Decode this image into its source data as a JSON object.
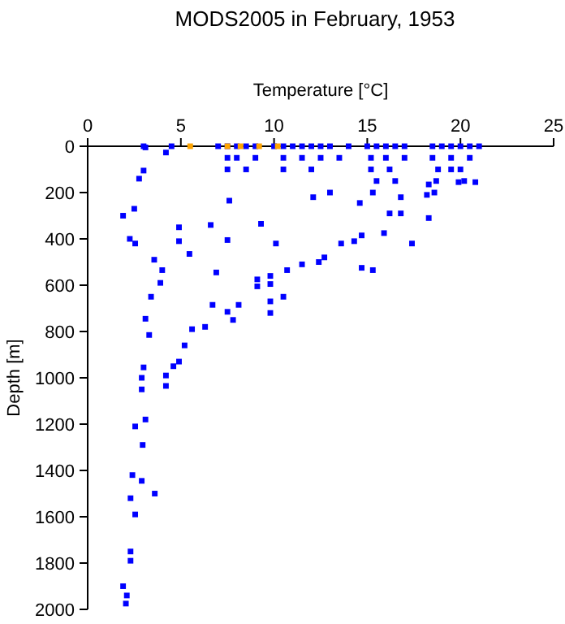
{
  "chart_data": {
    "type": "scatter",
    "title": "MODS2005 in February, 1953",
    "xlabel": "Temperature [°C]",
    "ylabel": "Depth [m]",
    "xlim": [
      0,
      25
    ],
    "xticks": [
      0,
      5,
      10,
      15,
      20,
      25
    ],
    "ylim": [
      2000,
      0
    ],
    "yticks": [
      0,
      200,
      400,
      600,
      800,
      1000,
      1200,
      1400,
      1600,
      1800,
      2000
    ],
    "grid": false,
    "marker": "square",
    "series": [
      {
        "color": "#0000ff",
        "x": [
          3,
          4.5,
          7,
          7.5,
          8,
          8.5,
          9,
          10,
          10.5,
          11,
          11.5,
          12,
          12.5,
          13,
          14,
          15,
          15.5,
          16,
          16.5,
          17,
          18.5,
          19,
          19.5,
          20,
          20.5,
          21,
          7.5,
          8,
          9,
          10.5,
          11.5,
          12.5,
          13.5,
          15.2,
          16,
          17,
          18.5,
          19.5,
          20.5,
          7.5,
          8.5,
          10.5,
          12,
          15.2,
          16.2,
          18.8,
          19.5,
          20,
          15.5,
          16.5,
          18.7,
          20.2,
          13,
          15.3,
          18.6,
          3.1,
          4.2,
          3,
          2.76,
          1.9,
          2.5,
          2.26,
          2.55,
          3.57,
          4,
          3.9,
          3.4,
          3.1,
          3.3,
          2.9,
          4.2,
          4.9,
          4.9,
          5.46,
          5.6,
          6.3,
          5.2,
          4.9,
          4.6,
          6.9,
          6.7,
          8.1,
          7.8,
          7.5,
          9.1,
          9.8,
          10.7,
          11.5,
          12.4,
          9.8,
          7.5,
          6.6,
          9.3,
          7.6,
          13.6,
          12.7,
          14.3,
          14.7,
          15.9,
          16.2,
          16.8,
          17.4,
          16.8,
          18.2,
          18.3,
          19.9,
          20.8,
          14.6,
          18.3,
          15.3,
          14.7,
          12.1,
          10.1,
          9.8,
          10.5,
          9.8,
          9.1,
          3,
          2.9,
          4.2,
          2.55,
          3.1,
          2.95,
          2.4,
          2.9,
          3.6,
          2.3,
          2.55,
          2.3,
          2.3,
          1.9,
          2.1,
          2.05
        ],
        "values": [
          0,
          0,
          0,
          0,
          0,
          0,
          0,
          0,
          0,
          0,
          0,
          0,
          0,
          0,
          0,
          0,
          0,
          0,
          0,
          0,
          0,
          0,
          0,
          0,
          0,
          0,
          50,
          50,
          50,
          50,
          50,
          50,
          50,
          50,
          50,
          50,
          50,
          50,
          50,
          100,
          100,
          100,
          100,
          100,
          100,
          100,
          100,
          100,
          150,
          150,
          150,
          150,
          200,
          200,
          200,
          5,
          27,
          105,
          140,
          300,
          270,
          400,
          420,
          490,
          535,
          590,
          650,
          745,
          815,
          1000,
          990,
          350,
          410,
          465,
          790,
          780,
          860,
          930,
          950,
          545,
          685,
          685,
          750,
          715,
          605,
          595,
          535,
          510,
          500,
          720,
          405,
          340,
          335,
          235,
          420,
          480,
          410,
          385,
          375,
          290,
          290,
          420,
          220,
          210,
          165,
          155,
          155,
          245,
          310,
          535,
          525,
          220,
          420,
          560,
          650,
          670,
          575,
          955,
          1050,
          1035,
          1210,
          1180,
          1290,
          1420,
          1445,
          1500,
          1520,
          1590,
          1750,
          1790,
          1900,
          1940,
          1975
        ]
      },
      {
        "color": "#ffa500",
        "x": [
          5.5,
          7.5,
          8.2,
          9.2,
          10.2
        ],
        "values": [
          0,
          0,
          0,
          0,
          0
        ]
      }
    ]
  }
}
